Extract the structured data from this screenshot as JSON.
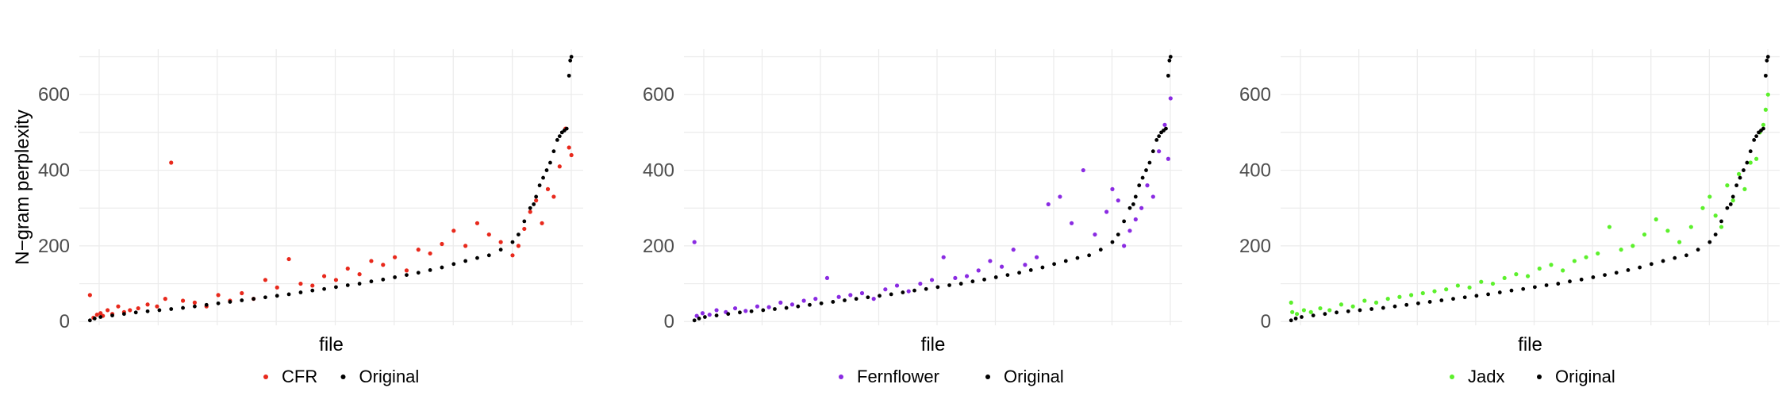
{
  "chart_data": [
    {
      "type": "scatter",
      "xlabel": "file",
      "ylabel": "N−gram perplexity",
      "yticks": [
        0,
        200,
        400,
        600
      ],
      "ylim": [
        -10,
        720
      ],
      "grid": true,
      "legend": "bottom",
      "series": [
        {
          "name": "CFR",
          "color": "#e8291c",
          "x": [
            1,
            4,
            7,
            10,
            12,
            16,
            20,
            25,
            30,
            35,
            42,
            50,
            58,
            65,
            70,
            80,
            90,
            100,
            110,
            120,
            130,
            140,
            150,
            160,
            170,
            180,
            190,
            200,
            210,
            220,
            230,
            240,
            250,
            260,
            270,
            280,
            290,
            300,
            310,
            320,
            330,
            340,
            350,
            360,
            365,
            370,
            375,
            380,
            385,
            390,
            395,
            400,
            405,
            408,
            410
          ],
          "y": [
            70,
            10,
            18,
            22,
            15,
            30,
            20,
            40,
            25,
            30,
            35,
            45,
            40,
            60,
            420,
            55,
            50,
            40,
            70,
            55,
            75,
            60,
            110,
            90,
            165,
            100,
            95,
            120,
            110,
            140,
            125,
            160,
            150,
            170,
            135,
            190,
            180,
            205,
            240,
            200,
            260,
            230,
            210,
            175,
            200,
            245,
            290,
            320,
            260,
            350,
            330,
            410,
            510,
            460,
            440
          ]
        },
        {
          "name": "Original",
          "color": "#000000",
          "x": [
            1,
            5,
            10,
            20,
            30,
            40,
            50,
            60,
            70,
            80,
            90,
            100,
            110,
            120,
            130,
            140,
            150,
            160,
            170,
            180,
            190,
            200,
            210,
            220,
            230,
            240,
            250,
            260,
            270,
            280,
            290,
            300,
            310,
            320,
            330,
            340,
            350,
            360,
            365,
            370,
            375,
            378,
            380,
            383,
            386,
            389,
            392,
            395,
            398,
            400,
            402,
            404,
            406,
            408,
            409,
            410
          ],
          "y": [
            3,
            8,
            12,
            16,
            20,
            24,
            27,
            30,
            33,
            36,
            40,
            44,
            48,
            52,
            56,
            60,
            64,
            68,
            72,
            77,
            82,
            86,
            91,
            96,
            100,
            106,
            111,
            117,
            123,
            129,
            136,
            143,
            152,
            160,
            168,
            175,
            190,
            210,
            230,
            265,
            300,
            310,
            330,
            360,
            380,
            400,
            420,
            450,
            480,
            490,
            500,
            505,
            510,
            650,
            690,
            700
          ]
        }
      ]
    },
    {
      "type": "scatter",
      "xlabel": "file",
      "ylabel": "",
      "yticks": [
        0,
        200,
        400,
        600
      ],
      "ylim": [
        -10,
        720
      ],
      "grid": true,
      "legend": "bottom",
      "series": [
        {
          "name": "Fernflower",
          "color": "#8a2be2",
          "x": [
            1,
            3,
            8,
            14,
            20,
            28,
            36,
            45,
            55,
            65,
            75,
            85,
            95,
            105,
            115,
            125,
            135,
            145,
            155,
            165,
            175,
            185,
            195,
            205,
            215,
            225,
            235,
            245,
            255,
            265,
            275,
            285,
            295,
            305,
            315,
            325,
            335,
            345,
            355,
            360,
            365,
            370,
            375,
            380,
            385,
            390,
            395,
            400,
            405,
            408,
            410
          ],
          "y": [
            210,
            15,
            22,
            18,
            30,
            25,
            35,
            28,
            40,
            38,
            50,
            45,
            55,
            60,
            115,
            65,
            70,
            75,
            60,
            85,
            95,
            80,
            100,
            110,
            170,
            115,
            120,
            135,
            160,
            145,
            190,
            150,
            170,
            310,
            330,
            260,
            400,
            230,
            290,
            350,
            320,
            200,
            240,
            270,
            300,
            360,
            330,
            450,
            520,
            430,
            590
          ]
        },
        {
          "name": "Original",
          "color": "#000000",
          "x": [
            1,
            5,
            10,
            20,
            30,
            40,
            50,
            60,
            70,
            80,
            90,
            100,
            110,
            120,
            130,
            140,
            150,
            160,
            170,
            180,
            190,
            200,
            210,
            220,
            230,
            240,
            250,
            260,
            270,
            280,
            290,
            300,
            310,
            320,
            330,
            340,
            350,
            360,
            365,
            370,
            375,
            378,
            380,
            383,
            386,
            389,
            392,
            395,
            398,
            400,
            402,
            404,
            406,
            408,
            409,
            410
          ],
          "y": [
            3,
            8,
            12,
            16,
            20,
            24,
            27,
            30,
            33,
            36,
            40,
            44,
            48,
            52,
            56,
            60,
            64,
            68,
            72,
            77,
            82,
            86,
            91,
            96,
            100,
            106,
            111,
            117,
            123,
            129,
            136,
            143,
            152,
            160,
            168,
            175,
            190,
            210,
            230,
            265,
            300,
            310,
            330,
            360,
            380,
            400,
            420,
            450,
            480,
            490,
            500,
            505,
            510,
            650,
            690,
            700
          ]
        }
      ]
    },
    {
      "type": "scatter",
      "xlabel": "file",
      "ylabel": "",
      "yticks": [
        0,
        200,
        400,
        600
      ],
      "ylim": [
        -10,
        720
      ],
      "grid": true,
      "legend": "bottom",
      "series": [
        {
          "name": "Jadx",
          "color": "#5cf02c",
          "x": [
            1,
            2,
            6,
            12,
            18,
            26,
            34,
            44,
            54,
            64,
            74,
            84,
            94,
            104,
            114,
            124,
            134,
            144,
            154,
            164,
            174,
            184,
            194,
            204,
            214,
            224,
            234,
            244,
            254,
            264,
            274,
            284,
            294,
            304,
            314,
            324,
            334,
            344,
            354,
            360,
            365,
            370,
            375,
            380,
            385,
            390,
            395,
            400,
            403,
            406,
            408,
            410
          ],
          "y": [
            50,
            25,
            20,
            30,
            25,
            35,
            30,
            45,
            40,
            55,
            50,
            60,
            65,
            70,
            75,
            80,
            85,
            95,
            90,
            105,
            100,
            115,
            125,
            120,
            140,
            150,
            135,
            160,
            170,
            180,
            250,
            190,
            200,
            230,
            270,
            240,
            210,
            250,
            300,
            330,
            280,
            250,
            360,
            320,
            390,
            350,
            420,
            430,
            500,
            520,
            560,
            600
          ]
        },
        {
          "name": "Original",
          "color": "#000000",
          "x": [
            1,
            5,
            10,
            20,
            30,
            40,
            50,
            60,
            70,
            80,
            90,
            100,
            110,
            120,
            130,
            140,
            150,
            160,
            170,
            180,
            190,
            200,
            210,
            220,
            230,
            240,
            250,
            260,
            270,
            280,
            290,
            300,
            310,
            320,
            330,
            340,
            350,
            360,
            365,
            370,
            375,
            378,
            380,
            383,
            386,
            389,
            392,
            395,
            398,
            400,
            402,
            404,
            406,
            408,
            409,
            410
          ],
          "y": [
            3,
            8,
            12,
            16,
            20,
            24,
            27,
            30,
            33,
            36,
            40,
            44,
            48,
            52,
            56,
            60,
            64,
            68,
            72,
            77,
            82,
            86,
            91,
            96,
            100,
            106,
            111,
            117,
            123,
            129,
            136,
            143,
            152,
            160,
            168,
            175,
            190,
            210,
            230,
            265,
            300,
            310,
            330,
            360,
            380,
            400,
            420,
            450,
            480,
            490,
            500,
            505,
            510,
            650,
            690,
            700
          ]
        }
      ]
    }
  ]
}
